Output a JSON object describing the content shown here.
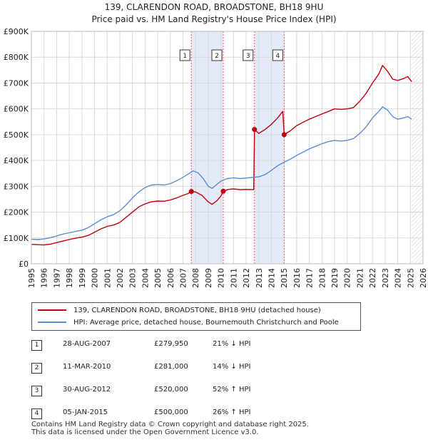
{
  "header": {
    "title_line1": "139, CLARENDON ROAD, BROADSTONE, BH18 9HU",
    "title_line2": "Price paid vs. HM Land Registry's House Price Index (HPI)"
  },
  "chart_data": {
    "type": "line",
    "title": "139, CLARENDON ROAD, BROADSTONE, BH18 9HU — Price paid vs. HM Land Registry's House Price Index (HPI)",
    "x_range": [
      1995,
      2026
    ],
    "ylim": [
      0,
      900000
    ],
    "y_ticks": [
      {
        "value": 0,
        "label": "£0"
      },
      {
        "value": 100000,
        "label": "£100K"
      },
      {
        "value": 200000,
        "label": "£200K"
      },
      {
        "value": 300000,
        "label": "£300K"
      },
      {
        "value": 400000,
        "label": "£400K"
      },
      {
        "value": 500000,
        "label": "£500K"
      },
      {
        "value": 600000,
        "label": "£600K"
      },
      {
        "value": 700000,
        "label": "£700K"
      },
      {
        "value": 800000,
        "label": "£800K"
      },
      {
        "value": 900000,
        "label": "£900K"
      }
    ],
    "x_ticks": [
      "1995",
      "1996",
      "1997",
      "1998",
      "1999",
      "2000",
      "2001",
      "2002",
      "2003",
      "2004",
      "2005",
      "2006",
      "2007",
      "2008",
      "2009",
      "2010",
      "2011",
      "2012",
      "2013",
      "2014",
      "2015",
      "2016",
      "2017",
      "2018",
      "2019",
      "2020",
      "2021",
      "2022",
      "2023",
      "2024",
      "2025",
      "2026"
    ],
    "grid": true,
    "shaded_spans": [
      [
        2007.66,
        2010.19
      ],
      [
        2012.66,
        2015.01
      ]
    ],
    "hatched_after": 2025.1,
    "series": [
      {
        "name": "139, CLARENDON ROAD, BROADSTONE, BH18 9HU (detached house)",
        "color": "#c0000a",
        "points": [
          [
            1995.0,
            75000
          ],
          [
            1995.5,
            74000
          ],
          [
            1996.0,
            73000
          ],
          [
            1996.5,
            76000
          ],
          [
            1997.0,
            82000
          ],
          [
            1997.5,
            88000
          ],
          [
            1998.0,
            94000
          ],
          [
            1998.5,
            99000
          ],
          [
            1999.0,
            103000
          ],
          [
            1999.5,
            110000
          ],
          [
            2000.0,
            122000
          ],
          [
            2000.5,
            135000
          ],
          [
            2001.0,
            145000
          ],
          [
            2001.5,
            150000
          ],
          [
            2002.0,
            160000
          ],
          [
            2002.5,
            180000
          ],
          [
            2003.0,
            200000
          ],
          [
            2003.5,
            220000
          ],
          [
            2004.0,
            232000
          ],
          [
            2004.5,
            240000
          ],
          [
            2005.0,
            243000
          ],
          [
            2005.5,
            242000
          ],
          [
            2006.0,
            247000
          ],
          [
            2006.5,
            255000
          ],
          [
            2007.0,
            265000
          ],
          [
            2007.4,
            272000
          ],
          [
            2007.66,
            279950
          ],
          [
            2008.0,
            278000
          ],
          [
            2008.5,
            265000
          ],
          [
            2009.0,
            240000
          ],
          [
            2009.3,
            230000
          ],
          [
            2009.7,
            245000
          ],
          [
            2010.0,
            262000
          ],
          [
            2010.19,
            281000
          ],
          [
            2010.6,
            288000
          ],
          [
            2011.0,
            290000
          ],
          [
            2011.5,
            287000
          ],
          [
            2012.0,
            288000
          ],
          [
            2012.6,
            287000
          ],
          [
            2012.66,
            520000
          ],
          [
            2013.0,
            505000
          ],
          [
            2013.5,
            520000
          ],
          [
            2014.0,
            540000
          ],
          [
            2014.5,
            565000
          ],
          [
            2014.9,
            590000
          ],
          [
            2015.01,
            500000
          ],
          [
            2015.5,
            515000
          ],
          [
            2016.0,
            535000
          ],
          [
            2016.5,
            548000
          ],
          [
            2017.0,
            560000
          ],
          [
            2017.5,
            570000
          ],
          [
            2018.0,
            580000
          ],
          [
            2018.5,
            590000
          ],
          [
            2019.0,
            600000
          ],
          [
            2019.5,
            598000
          ],
          [
            2020.0,
            600000
          ],
          [
            2020.5,
            605000
          ],
          [
            2021.0,
            630000
          ],
          [
            2021.5,
            660000
          ],
          [
            2022.0,
            700000
          ],
          [
            2022.5,
            735000
          ],
          [
            2022.8,
            768000
          ],
          [
            2023.2,
            745000
          ],
          [
            2023.6,
            715000
          ],
          [
            2024.0,
            710000
          ],
          [
            2024.5,
            718000
          ],
          [
            2024.8,
            725000
          ],
          [
            2025.1,
            705000
          ]
        ]
      },
      {
        "name": "HPI: Average price, detached house, Bournemouth Christchurch and Poole",
        "color": "#5b8ed0",
        "points": [
          [
            1995.0,
            95000
          ],
          [
            1995.5,
            94000
          ],
          [
            1996.0,
            96000
          ],
          [
            1996.5,
            101000
          ],
          [
            1997.0,
            108000
          ],
          [
            1997.5,
            115000
          ],
          [
            1998.0,
            120000
          ],
          [
            1998.5,
            125000
          ],
          [
            1999.0,
            130000
          ],
          [
            1999.5,
            140000
          ],
          [
            2000.0,
            155000
          ],
          [
            2000.5,
            170000
          ],
          [
            2001.0,
            182000
          ],
          [
            2001.5,
            190000
          ],
          [
            2002.0,
            205000
          ],
          [
            2002.5,
            228000
          ],
          [
            2003.0,
            255000
          ],
          [
            2003.5,
            278000
          ],
          [
            2004.0,
            295000
          ],
          [
            2004.5,
            305000
          ],
          [
            2005.0,
            307000
          ],
          [
            2005.5,
            305000
          ],
          [
            2006.0,
            310000
          ],
          [
            2006.5,
            322000
          ],
          [
            2007.0,
            335000
          ],
          [
            2007.5,
            350000
          ],
          [
            2007.8,
            360000
          ],
          [
            2008.2,
            352000
          ],
          [
            2008.6,
            330000
          ],
          [
            2009.0,
            300000
          ],
          [
            2009.3,
            292000
          ],
          [
            2009.7,
            308000
          ],
          [
            2010.0,
            320000
          ],
          [
            2010.5,
            330000
          ],
          [
            2011.0,
            333000
          ],
          [
            2011.5,
            330000
          ],
          [
            2012.0,
            332000
          ],
          [
            2012.6,
            335000
          ],
          [
            2013.0,
            337000
          ],
          [
            2013.5,
            345000
          ],
          [
            2014.0,
            362000
          ],
          [
            2014.5,
            380000
          ],
          [
            2015.0,
            393000
          ],
          [
            2015.5,
            405000
          ],
          [
            2016.0,
            420000
          ],
          [
            2016.5,
            432000
          ],
          [
            2017.0,
            445000
          ],
          [
            2017.5,
            455000
          ],
          [
            2018.0,
            465000
          ],
          [
            2018.5,
            473000
          ],
          [
            2019.0,
            478000
          ],
          [
            2019.5,
            475000
          ],
          [
            2020.0,
            478000
          ],
          [
            2020.5,
            485000
          ],
          [
            2021.0,
            505000
          ],
          [
            2021.5,
            530000
          ],
          [
            2022.0,
            565000
          ],
          [
            2022.5,
            590000
          ],
          [
            2022.8,
            608000
          ],
          [
            2023.2,
            595000
          ],
          [
            2023.6,
            570000
          ],
          [
            2024.0,
            560000
          ],
          [
            2024.5,
            565000
          ],
          [
            2024.8,
            570000
          ],
          [
            2025.1,
            560000
          ]
        ]
      }
    ],
    "sales": [
      {
        "id": "1",
        "x": 2007.66,
        "value": 279950
      },
      {
        "id": "2",
        "x": 2010.19,
        "value": 281000
      },
      {
        "id": "3",
        "x": 2012.66,
        "value": 520000
      },
      {
        "id": "4",
        "x": 2015.01,
        "value": 500000
      }
    ]
  },
  "legend": {
    "property_label": "139, CLARENDON ROAD, BROADSTONE, BH18 9HU (detached house)",
    "hpi_label": "HPI: Average price, detached house, Bournemouth Christchurch and Poole"
  },
  "sales_table": [
    {
      "num": "1",
      "date": "28-AUG-2007",
      "price": "£279,950",
      "hpi": "21% ↓ HPI"
    },
    {
      "num": "2",
      "date": "11-MAR-2010",
      "price": "£281,000",
      "hpi": "14% ↓ HPI"
    },
    {
      "num": "3",
      "date": "30-AUG-2012",
      "price": "£520,000",
      "hpi": "52% ↑ HPI"
    },
    {
      "num": "4",
      "date": "05-JAN-2015",
      "price": "£500,000",
      "hpi": "26% ↑ HPI"
    }
  ],
  "footer": {
    "line1": "Contains HM Land Registry data © Crown copyright and database right 2025.",
    "line2": "This data is licensed under the Open Government Licence v3.0."
  },
  "colors": {
    "property": "#c0000a",
    "hpi": "#5b8ed0",
    "span_fill": "#dce6f7",
    "grid": "#d9d9d9"
  }
}
